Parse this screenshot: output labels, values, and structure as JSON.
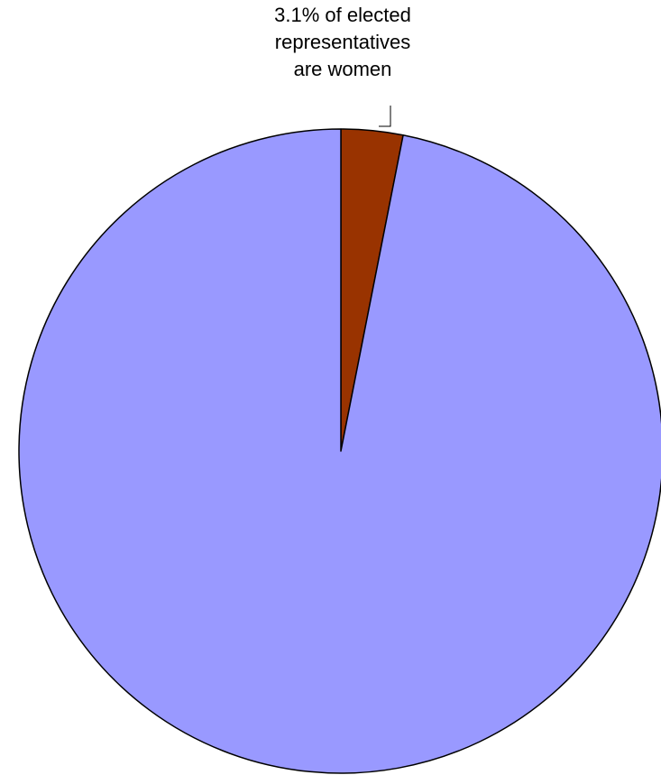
{
  "chart_data": {
    "type": "pie",
    "slices": [
      {
        "value": 3.1,
        "color": "#993300"
      },
      {
        "value": 96.9,
        "color": "#9999FF"
      }
    ],
    "annotation": {
      "lines": [
        "3.1% of elected",
        "representatives",
        "are women"
      ]
    },
    "start_angle": "top",
    "direction": "clockwise",
    "border_color": "#000000"
  }
}
